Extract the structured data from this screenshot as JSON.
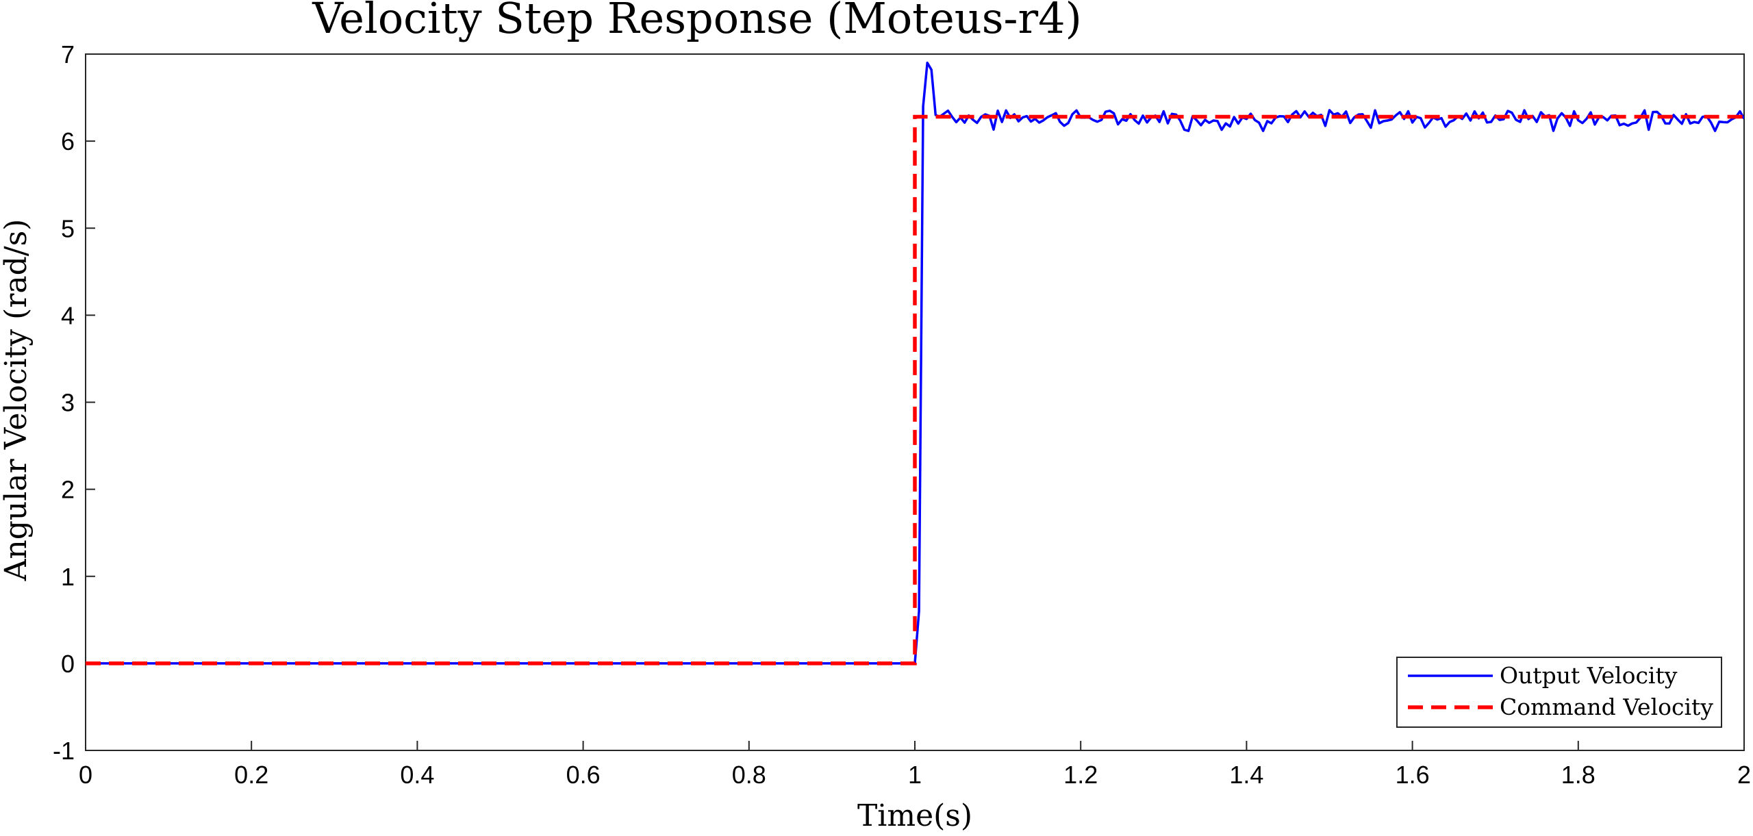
{
  "chart_data": {
    "type": "line",
    "title": "Velocity Step Response (Moteus-r4)",
    "xlabel": "Time(s)",
    "ylabel": "Angular Velocity (rad/s)",
    "xlim": [
      0,
      2
    ],
    "ylim": [
      -1,
      7
    ],
    "xticks": [
      0,
      0.2,
      0.4,
      0.6,
      0.8,
      1,
      1.2,
      1.4,
      1.6,
      1.8,
      2
    ],
    "xtick_labels": [
      "0",
      "0.2",
      "0.4",
      "0.6",
      "0.8",
      "1",
      "1.2",
      "1.4",
      "1.6",
      "1.8",
      "2"
    ],
    "yticks": [
      -1,
      0,
      1,
      2,
      3,
      4,
      5,
      6,
      7
    ],
    "ytick_labels": [
      "-1",
      "0",
      "1",
      "2",
      "3",
      "4",
      "5",
      "6",
      "7"
    ],
    "grid": false,
    "legend_position": "bottom-right",
    "step_time": 1.0,
    "steady_value": 6.28,
    "series": [
      {
        "name": "Output Velocity",
        "color": "#0000ff",
        "style": "solid",
        "x": [
          0,
          0.25,
          0.5,
          0.75,
          1.0,
          1.005,
          1.01,
          1.015,
          1.02,
          1.025,
          1.03,
          1.04,
          1.05,
          1.06,
          1.08,
          1.1,
          1.2,
          1.3,
          1.4,
          1.5,
          1.6,
          1.7,
          1.8,
          1.9,
          2.0
        ],
        "y": [
          0,
          0,
          0,
          0,
          0,
          0.6,
          6.4,
          6.9,
          6.82,
          6.3,
          6.28,
          6.35,
          6.25,
          6.3,
          6.22,
          6.3,
          6.28,
          6.3,
          6.26,
          6.3,
          6.28,
          6.3,
          6.27,
          6.3,
          6.28
        ],
        "oscillation_amplitude": 0.08
      },
      {
        "name": "Command Velocity",
        "color": "#ff0000",
        "style": "dashed",
        "x": [
          0,
          1.0,
          1.0,
          2.0
        ],
        "y": [
          0,
          0,
          6.28,
          6.28
        ]
      }
    ]
  }
}
